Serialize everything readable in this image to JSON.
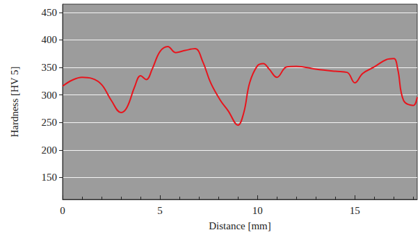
{
  "chart_data": {
    "type": "line",
    "x_label": "Distance [mm]",
    "y_label": "Hardness [HV 5]",
    "x": [
      0,
      0.5,
      1,
      1.5,
      2,
      2.5,
      3,
      3.3,
      3.7,
      4,
      4.3,
      4.6,
      5,
      5.4,
      5.8,
      6.3,
      6.8,
      7.2,
      7.6,
      8.1,
      8.5,
      9,
      9.3,
      9.6,
      10,
      10.3,
      10.6,
      11,
      11.5,
      12,
      13,
      14,
      14.6,
      15,
      15.4,
      16,
      16.6,
      17,
      17.2,
      17.5,
      18,
      18.2
    ],
    "values": [
      316,
      327,
      332,
      330,
      319,
      290,
      268,
      277,
      315,
      335,
      328,
      347,
      379,
      388,
      377,
      381,
      384,
      360,
      322,
      290,
      271,
      245,
      268,
      322,
      353,
      357,
      347,
      332,
      351,
      352,
      347,
      343,
      341,
      322,
      339,
      351,
      364,
      366,
      347,
      290,
      281,
      296
    ],
    "color": "#e8141c",
    "xlim": [
      0,
      18.2
    ],
    "xticks": [
      0,
      5,
      10,
      15
    ],
    "ylim": [
      110,
      465
    ],
    "yticks": [
      150,
      200,
      250,
      300,
      350,
      400,
      450
    ],
    "grid": true
  }
}
